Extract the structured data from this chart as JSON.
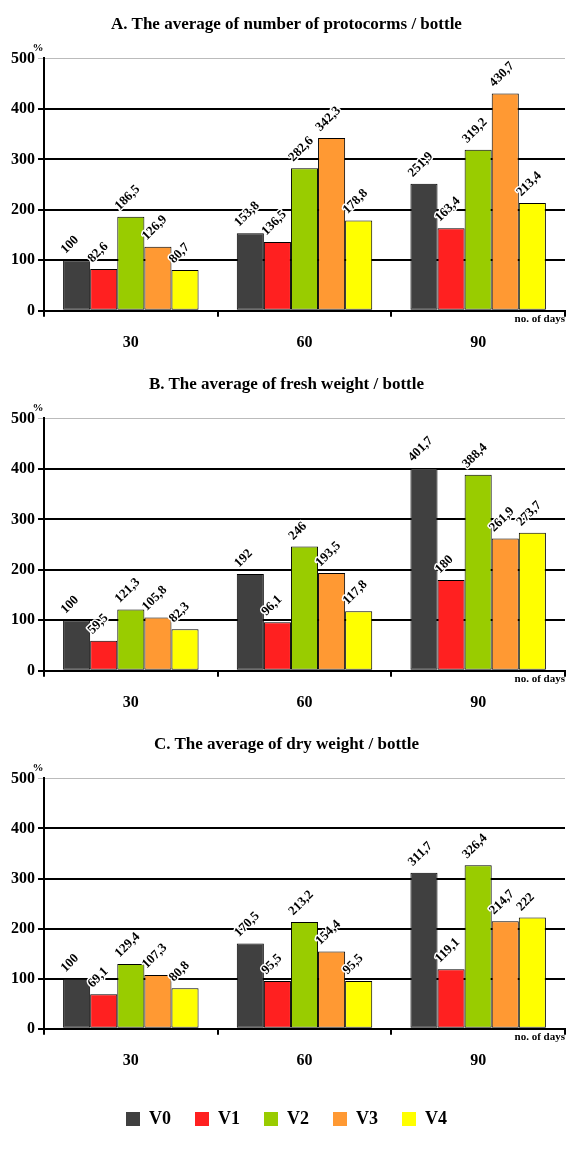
{
  "chart_data": [
    {
      "type": "bar",
      "title": "A. The average of number of protocorms / bottle",
      "xlabel": "no. of days",
      "ylabel": "%",
      "categories": [
        "30",
        "60",
        "90"
      ],
      "ylim": [
        0,
        500
      ],
      "yticks": [
        0,
        100,
        200,
        300,
        400,
        500
      ],
      "grid": "y",
      "legend": false,
      "series": [
        {
          "color": "#404040",
          "values": [
            100,
            153.8,
            251.9
          ],
          "value_labels": [
            "100",
            "153,8",
            "251,9"
          ]
        },
        {
          "color": "#ff2020",
          "values": [
            82.6,
            136.5,
            163.4
          ],
          "value_labels": [
            "82,6",
            "136,5",
            "163,4"
          ]
        },
        {
          "color": "#99cc00",
          "values": [
            186.5,
            282.6,
            319.2
          ],
          "value_labels": [
            "186,5",
            "282,6",
            "319,2"
          ]
        },
        {
          "color": "#ff9933",
          "values": [
            126.9,
            342.3,
            430.7
          ],
          "value_labels": [
            "126,9",
            "342,3",
            "430,7"
          ]
        },
        {
          "color": "#ffff00",
          "values": [
            80.7,
            178.8,
            213.4
          ],
          "value_labels": [
            "80,7",
            "178,8",
            "213,4"
          ]
        }
      ]
    },
    {
      "type": "bar",
      "title": "B. The average of fresh weight / bottle",
      "xlabel": "no. of days",
      "ylabel": "%",
      "categories": [
        "30",
        "60",
        "90"
      ],
      "ylim": [
        0,
        500
      ],
      "yticks": [
        0,
        100,
        200,
        300,
        400,
        500
      ],
      "grid": "y",
      "legend": false,
      "series": [
        {
          "color": "#404040",
          "values": [
            100,
            192,
            401.7
          ],
          "value_labels": [
            "100",
            "192",
            "401,7"
          ]
        },
        {
          "color": "#ff2020",
          "values": [
            59.5,
            96.1,
            180
          ],
          "value_labels": [
            "59,5",
            "96,1",
            "180"
          ]
        },
        {
          "color": "#99cc00",
          "values": [
            121.3,
            246,
            388.4
          ],
          "value_labels": [
            "121,3",
            "246",
            "388,4"
          ]
        },
        {
          "color": "#ff9933",
          "values": [
            105.8,
            193.5,
            261.9
          ],
          "value_labels": [
            "105,8",
            "193,5",
            "261,9"
          ]
        },
        {
          "color": "#ffff00",
          "values": [
            82.3,
            117.8,
            273.7
          ],
          "value_labels": [
            "82,3",
            "117,8",
            "273,7"
          ]
        }
      ]
    },
    {
      "type": "bar",
      "title": "C. The average of dry weight / bottle",
      "xlabel": "no. of days",
      "ylabel": "%",
      "categories": [
        "30",
        "60",
        "90"
      ],
      "ylim": [
        0,
        500
      ],
      "yticks": [
        0,
        100,
        200,
        300,
        400,
        500
      ],
      "grid": "y",
      "legend": "bottom",
      "series": [
        {
          "name": "V0",
          "color": "#404040",
          "values": [
            100,
            170.5,
            311.7
          ],
          "value_labels": [
            "100",
            "170,5",
            "311,7"
          ]
        },
        {
          "name": "V1",
          "color": "#ff2020",
          "values": [
            69.1,
            95.5,
            119.1
          ],
          "value_labels": [
            "69,1",
            "95,5",
            "119,1"
          ]
        },
        {
          "name": "V2",
          "color": "#99cc00",
          "values": [
            129.4,
            213.2,
            326.4
          ],
          "value_labels": [
            "129,4",
            "213,2",
            "326,4"
          ]
        },
        {
          "name": "V3",
          "color": "#ff9933",
          "values": [
            107.3,
            154.4,
            214.7
          ],
          "value_labels": [
            "107,3",
            "154,4",
            "214,7"
          ]
        },
        {
          "name": "V4",
          "color": "#ffff00",
          "values": [
            80.8,
            95.5,
            222
          ],
          "value_labels": [
            "80,8",
            "95,5",
            "222"
          ]
        }
      ]
    }
  ]
}
